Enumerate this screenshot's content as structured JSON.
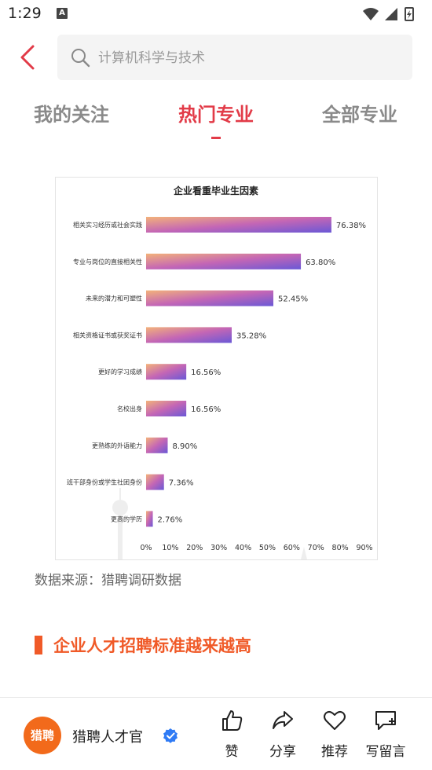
{
  "status": {
    "time": "1:29",
    "notif_letter": "A"
  },
  "search": {
    "placeholder": "计算机科学与技术"
  },
  "tabs": [
    {
      "label": "我的关注"
    },
    {
      "label": "热门专业"
    },
    {
      "label": "全部专业"
    }
  ],
  "active_tab": "热门专业",
  "chart_data": {
    "type": "bar",
    "orientation": "horizontal",
    "title": "企业看重毕业生因素",
    "categories": [
      "相关实习经历或社会实践",
      "专业与岗位的直接相关性",
      "未来的潜力和可塑性",
      "相关资格证书或获奖证书",
      "更好的学习成绩",
      "名校出身",
      "更熟练的外语能力",
      "班干部身份或学生社团身份",
      "更高的学历"
    ],
    "values": [
      76.38,
      63.8,
      52.45,
      35.28,
      16.56,
      16.56,
      8.9,
      7.36,
      2.76
    ],
    "value_labels": [
      "76.38%",
      "63.80%",
      "52.45%",
      "35.28%",
      "16.56%",
      "16.56%",
      "8.90%",
      "7.36%",
      "2.76%"
    ],
    "x_ticks": [
      "0%",
      "10%",
      "20%",
      "30%",
      "40%",
      "50%",
      "60%",
      "70%",
      "80%",
      "90%"
    ],
    "xlim": [
      0,
      90
    ],
    "grid": false,
    "bar_gradient": [
      "#f3b27a",
      "#c466b5",
      "#6a58d6"
    ]
  },
  "source_text": "数据来源：猎聘调研数据",
  "section_heading": "企业人才招聘标准越来越高",
  "author": {
    "logo_text": "猎聘",
    "name": "猎聘人才官"
  },
  "actions": [
    {
      "label": "赞"
    },
    {
      "label": "分享"
    },
    {
      "label": "推荐"
    },
    {
      "label": "写留言"
    }
  ],
  "colors": {
    "accent": "#e23b48",
    "heading": "#f05a28",
    "logo": "#f26a1b",
    "verified": "#2f7bf5"
  }
}
